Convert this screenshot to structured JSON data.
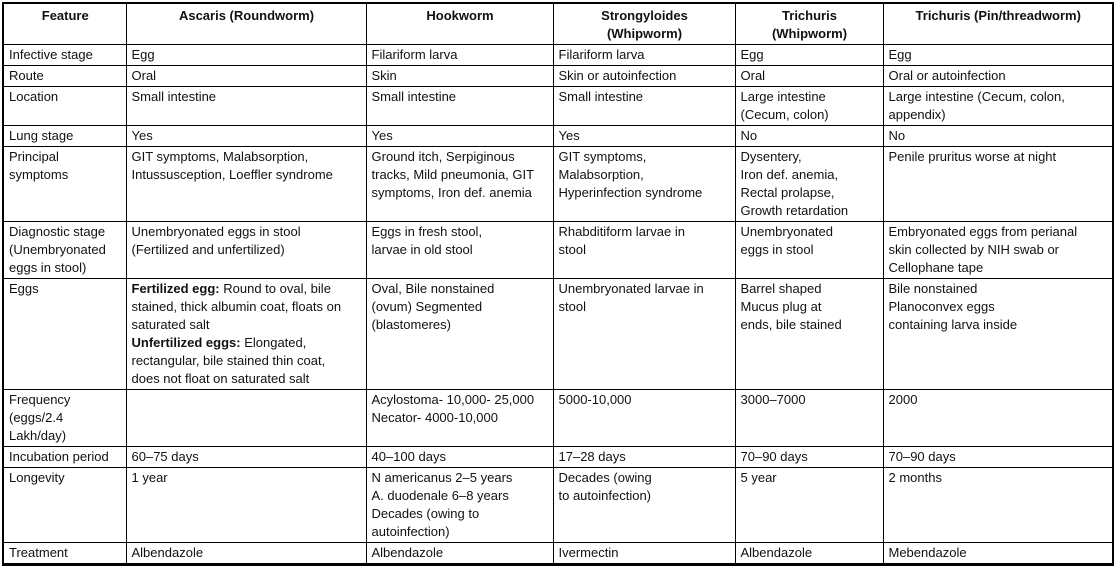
{
  "table": {
    "headers": [
      "Feature",
      "Ascaris (Roundworm)",
      "Hookworm",
      "Strongyloides\n(Whipworm)",
      "Trichuris\n(Whipworm)",
      "Trichuris (Pin/threadworm)"
    ],
    "rows": [
      {
        "feature": "Infective stage",
        "cells": [
          "Egg",
          "Filariform larva",
          "Filariform larva",
          "Egg",
          "Egg"
        ]
      },
      {
        "feature": "Route",
        "cells": [
          "Oral",
          "Skin",
          "Skin or autoinfection",
          "Oral",
          "Oral or autoinfection"
        ]
      },
      {
        "feature": "Location",
        "cells": [
          "Small intestine",
          "Small intestine",
          "Small intestine",
          "Large intestine\n(Cecum, colon)",
          "Large intestine (Cecum, colon,\nappendix)"
        ]
      },
      {
        "feature": "Lung stage",
        "cells": [
          "Yes",
          "Yes",
          "Yes",
          "No",
          "No"
        ]
      },
      {
        "feature": "Principal\nsymptoms",
        "cells": [
          "GIT symptoms, Malabsorption,\nIntussusception, Loeffler syndrome",
          "Ground itch, Serpiginous\ntracks, Mild pneumonia, GIT\nsymptoms, Iron def. anemia",
          "GIT symptoms,\nMalabsorption,\nHyperinfection syndrome",
          "Dysentery,\nIron def. anemia,\nRectal prolapse,\nGrowth retardation",
          "Penile pruritus worse at night"
        ]
      },
      {
        "feature": "Diagnostic stage\n(Unembryonated\neggs in stool)",
        "cells": [
          "Unembryonated eggs in stool\n(Fertilized and unfertilized)",
          "Eggs in fresh stool,\nlarvae in old stool",
          "Rhabditiform larvae in\nstool",
          "Unembryonated\neggs in stool",
          "Embryonated eggs from perianal\nskin collected by NIH swab or\nCellophane tape"
        ]
      },
      {
        "feature": "Eggs",
        "cells": [
          [
            {
              "text": "Fertilized egg:",
              "bold": true
            },
            {
              "text": " Round to oval, bile\nstained, thick albumin coat, floats on\nsaturated salt\n"
            },
            {
              "text": "Unfertilized eggs:",
              "bold": true
            },
            {
              "text": " Elongated,\nrectangular, bile stained thin coat,\ndoes not float on saturated salt"
            }
          ],
          "Oval, Bile nonstained\n(ovum) Segmented\n(blastomeres)",
          "Unembryonated larvae in\nstool",
          "Barrel shaped\nMucus plug at\nends, bile stained",
          "Bile nonstained\nPlanoconvex eggs\ncontaining larva inside"
        ]
      },
      {
        "feature": "Frequency\n(eggs/2.4\nLakh/day)",
        "cells": [
          "",
          "Acylostoma- 10,000- 25,000\nNecator- 4000-10,000",
          "5000-10,000",
          "3000–7000",
          "2000"
        ]
      },
      {
        "feature": "Incubation period",
        "cells": [
          "60–75 days",
          "40–100 days",
          "17–28 days",
          "70–90 days",
          "70–90 days"
        ]
      },
      {
        "feature": "Longevity",
        "cells": [
          "1 year",
          "N americanus 2–5 years\nA. duodenale 6–8 years\nDecades (owing to\nautoinfection)",
          "Decades (owing\nto autoinfection)",
          "5 year",
          "2 months"
        ]
      },
      {
        "feature": "Treatment",
        "cells": [
          "Albendazole",
          "Albendazole",
          "Ivermectin",
          "Albendazole",
          "Mebendazole"
        ]
      }
    ]
  }
}
